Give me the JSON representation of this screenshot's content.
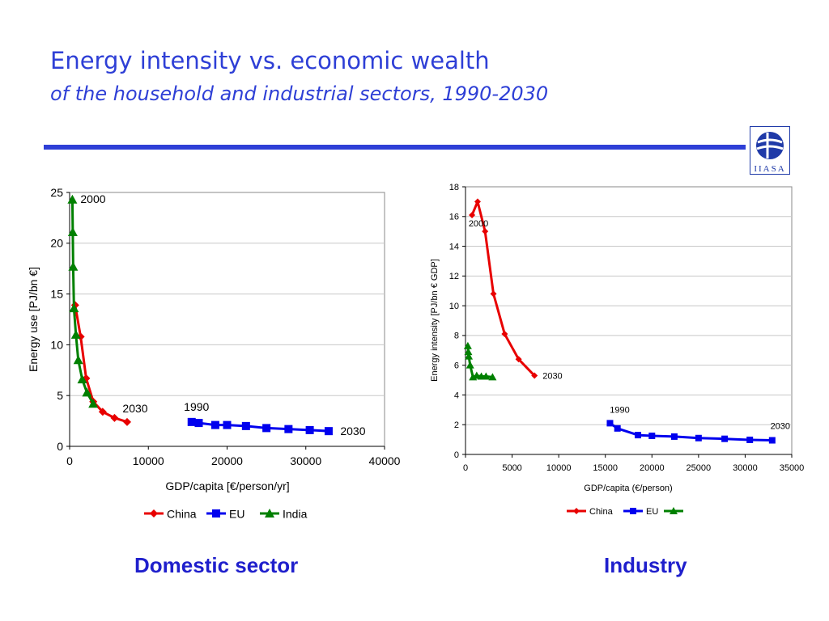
{
  "header": {
    "title": "Energy intensity vs. economic wealth",
    "subtitle": "of the household and industrial sectors, 1990-2030",
    "logo_text": "IIASA",
    "accent_color": "#2e3fd6"
  },
  "captions": {
    "left": "Domestic sector",
    "right": "Industry"
  },
  "chart_data": [
    {
      "type": "line",
      "xlabel": "GDP/capita [€/person/yr]",
      "ylabel": "Energy use [PJ/bn €]",
      "xlim": [
        0,
        40000
      ],
      "ylim": [
        0,
        25
      ],
      "xticks": [
        0,
        10000,
        20000,
        30000,
        40000
      ],
      "yticks": [
        0,
        5,
        10,
        15,
        20,
        25
      ],
      "grid": "horizontal",
      "legend_position": "bottom",
      "series": [
        {
          "name": "China",
          "color": "#e80000",
          "marker": "diamond",
          "x": [
            700,
            1400,
            2100,
            3000,
            4200,
            5700,
            7300
          ],
          "y": [
            13.9,
            10.8,
            6.7,
            4.4,
            3.4,
            2.8,
            2.4
          ]
        },
        {
          "name": "EU",
          "color": "#0000ee",
          "marker": "square",
          "x": [
            15500,
            16400,
            18500,
            20000,
            22400,
            25000,
            27800,
            30500,
            32900
          ],
          "y": [
            2.4,
            2.3,
            2.1,
            2.1,
            2.0,
            1.8,
            1.7,
            1.6,
            1.5
          ]
        },
        {
          "name": "India",
          "color": "#008000",
          "marker": "triangle",
          "x": [
            350,
            400,
            450,
            550,
            800,
            1100,
            1600,
            2200,
            3000
          ],
          "y": [
            24.3,
            21.1,
            17.7,
            13.6,
            11.0,
            8.5,
            6.6,
            5.3,
            4.2
          ]
        }
      ],
      "annotations": [
        "2000",
        "2030",
        "1990",
        "2030"
      ]
    },
    {
      "type": "line",
      "xlabel": "GDP/capita (€/person)",
      "ylabel": "Energy intensity [PJ/bn € GDP]",
      "xlim": [
        0,
        35000
      ],
      "ylim": [
        0,
        18
      ],
      "xticks": [
        0,
        5000,
        10000,
        15000,
        20000,
        25000,
        30000,
        35000
      ],
      "yticks": [
        0,
        2,
        4,
        6,
        8,
        10,
        12,
        14,
        16,
        18
      ],
      "grid": "horizontal",
      "legend_position": "bottom",
      "series": [
        {
          "name": "China",
          "color": "#e80000",
          "marker": "diamond",
          "x": [
            700,
            1300,
            2100,
            3000,
            4200,
            5700,
            7400
          ],
          "y": [
            16.1,
            17.0,
            15.0,
            10.8,
            8.1,
            6.4,
            5.3
          ]
        },
        {
          "name": "EU",
          "color": "#0000ee",
          "marker": "square",
          "x": [
            15500,
            16300,
            18500,
            20000,
            22400,
            25000,
            27800,
            30500,
            32900
          ],
          "y": [
            2.1,
            1.75,
            1.3,
            1.25,
            1.2,
            1.1,
            1.05,
            0.98,
            0.95
          ]
        },
        {
          "name": "",
          "color": "#008000",
          "marker": "triangle",
          "x": [
            250,
            300,
            350,
            500,
            800,
            1200,
            1700,
            2200,
            2900
          ],
          "y": [
            7.3,
            6.9,
            6.6,
            6.0,
            5.2,
            5.3,
            5.25,
            5.25,
            5.2
          ]
        }
      ],
      "annotations": [
        "2000",
        "2030",
        "1990",
        "2030"
      ]
    }
  ]
}
